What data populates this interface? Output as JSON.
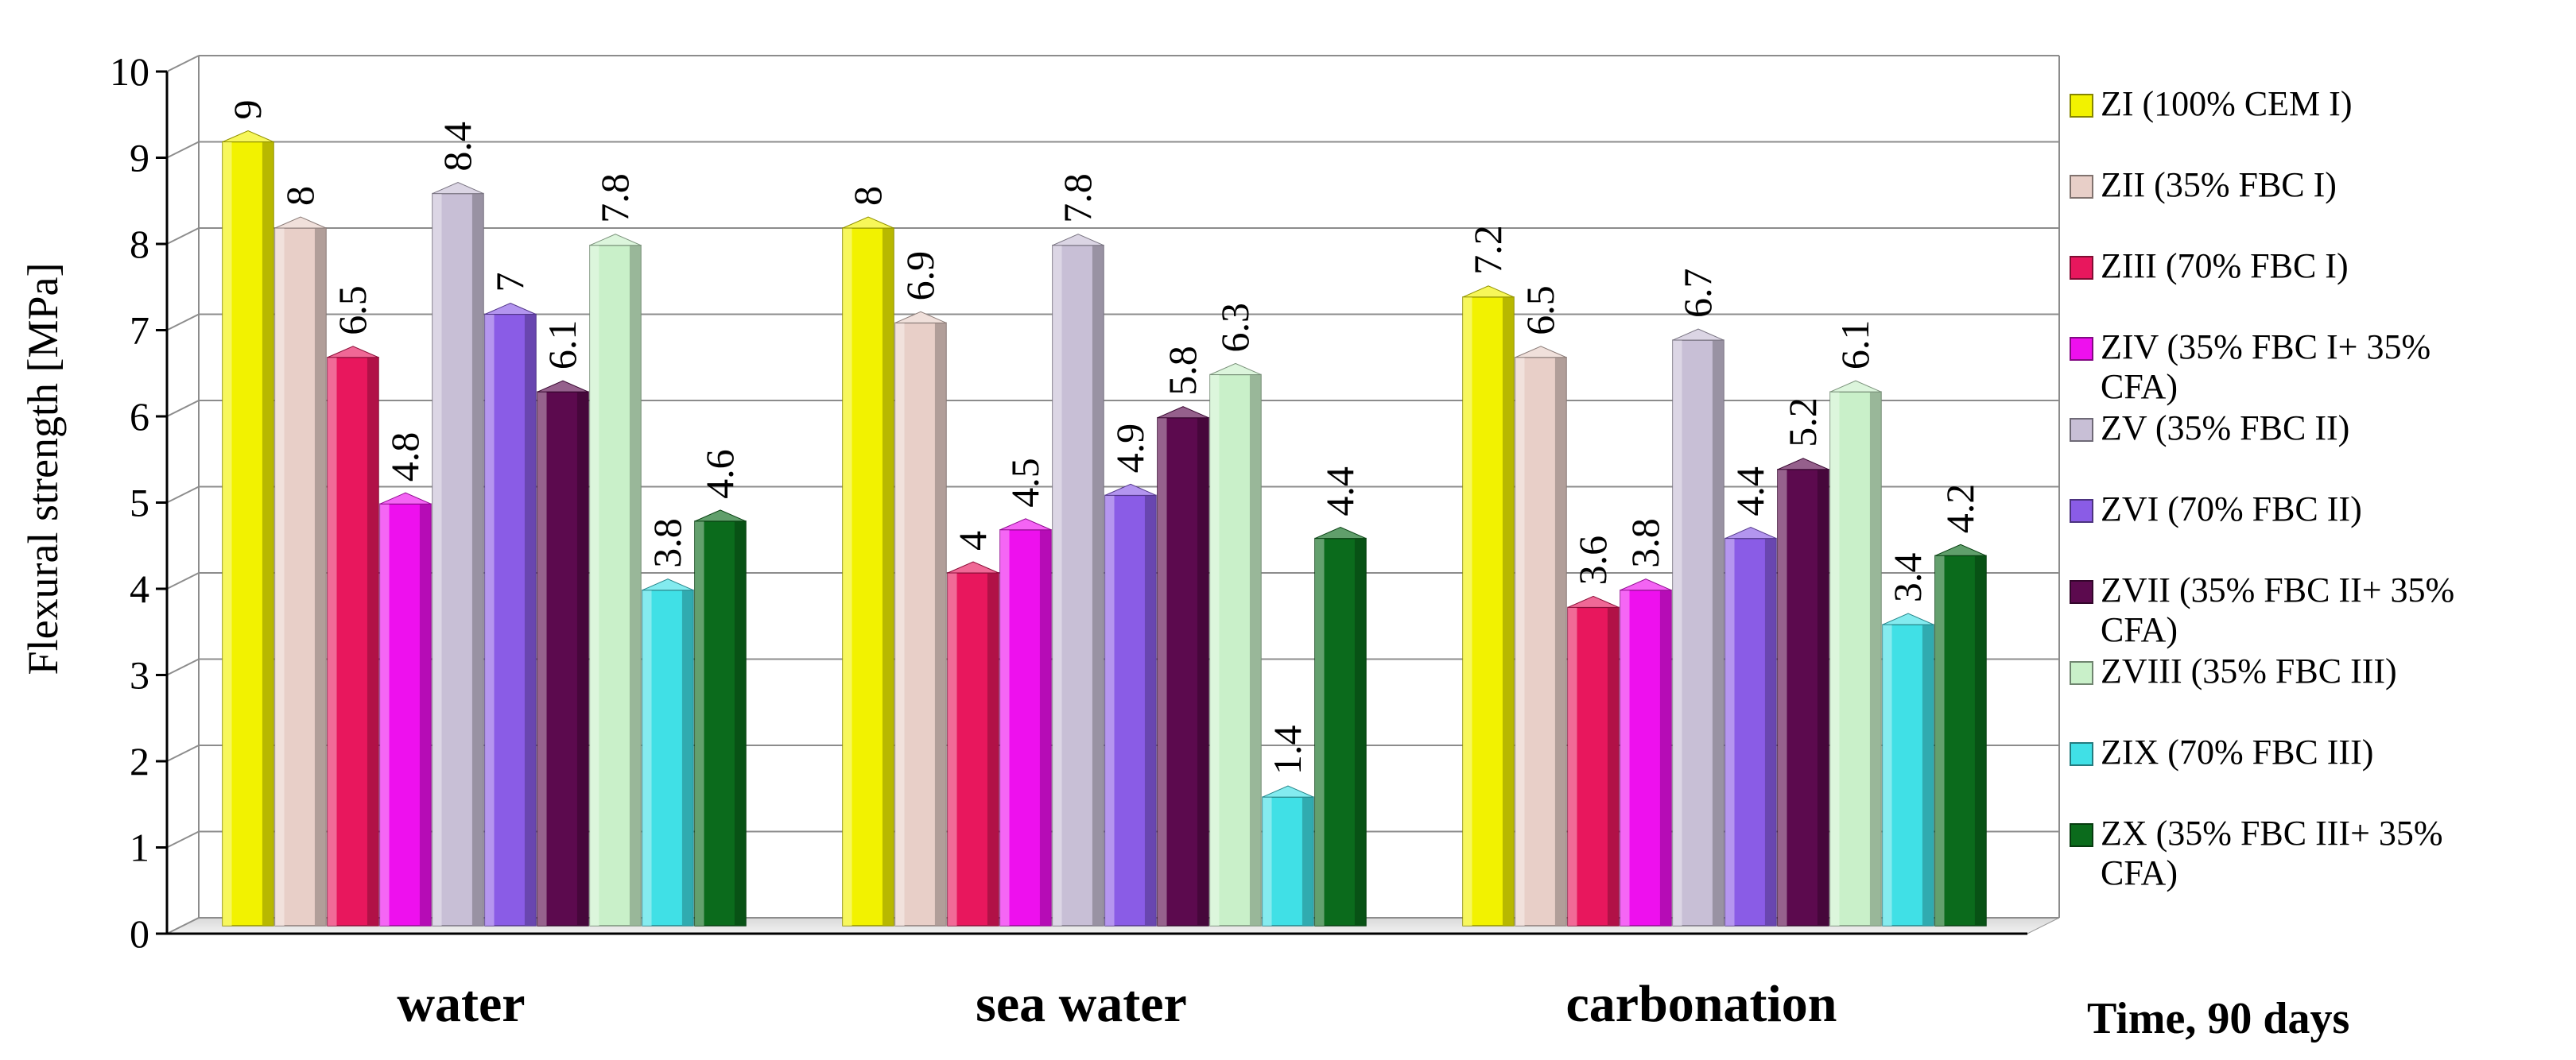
{
  "chart_data": {
    "type": "bar",
    "categories": [
      "water",
      "sea water",
      "carbonation"
    ],
    "series": [
      {
        "name": "ZI (100% CEM I)",
        "values": [
          9,
          8,
          7.2
        ],
        "color": "#f2f200",
        "label_lines": [
          "ZI (100% CEM I)"
        ]
      },
      {
        "name": "ZII (35% FBC I)",
        "values": [
          8,
          6.9,
          6.5
        ],
        "color": "#e8cfc8",
        "label_lines": [
          "ZII (35% FBC I)"
        ]
      },
      {
        "name": "ZIII (70%  FBC I)",
        "values": [
          6.5,
          4,
          3.6
        ],
        "color": "#e8175d",
        "label_lines": [
          "ZIII (70%  FBC I)"
        ]
      },
      {
        "name": "ZIV (35%  FBC I+ 35% CFA)",
        "values": [
          4.8,
          4.5,
          3.8
        ],
        "color": "#ee10ee",
        "label_lines": [
          "ZIV (35%  FBC I+ 35%",
          "CFA)"
        ]
      },
      {
        "name": "ZV (35% FBC II)",
        "values": [
          8.4,
          7.8,
          6.7
        ],
        "color": "#c8bfd6",
        "label_lines": [
          "ZV (35% FBC II)"
        ]
      },
      {
        "name": "ZVI (70% FBC II)",
        "values": [
          7,
          4.9,
          4.4
        ],
        "color": "#8a5ce6",
        "label_lines": [
          "ZVI (70% FBC II)"
        ]
      },
      {
        "name": "ZVII (35%  FBC II+ 35% CFA)",
        "values": [
          6.1,
          5.8,
          5.2
        ],
        "color": "#5c0a4e",
        "label_lines": [
          "ZVII (35%  FBC II+ 35%",
          "CFA)"
        ]
      },
      {
        "name": "ZVIII (35% FBC III)",
        "values": [
          7.8,
          6.3,
          6.1
        ],
        "color": "#c9f0c9",
        "label_lines": [
          "ZVIII (35% FBC III)"
        ]
      },
      {
        "name": "ZIX (70% FBC III)",
        "values": [
          3.8,
          1.4,
          3.4
        ],
        "color": "#40e0e6",
        "label_lines": [
          "ZIX (70% FBC III)"
        ]
      },
      {
        "name": "ZX (35%  FBC III+ 35% CFA)",
        "values": [
          4.6,
          4.4,
          4.2
        ],
        "color": "#0b6b1c",
        "label_lines": [
          "ZX (35%  FBC III+ 35%",
          "CFA)"
        ]
      }
    ],
    "data_labels": [
      [
        "9",
        "8",
        "6.5",
        "4.8",
        "8.4",
        "7",
        "6.1",
        "7.8",
        "3.8",
        "4.6"
      ],
      [
        "8",
        "6.9",
        "4",
        "4.5",
        "7.8",
        "4.9",
        "5.8",
        "6.3",
        "1.4",
        "4.4"
      ],
      [
        "7.2",
        "6.5",
        "3.6",
        "3.8",
        "6.7",
        "4.4",
        "5.2",
        "6.1",
        "3.4",
        "4.2"
      ]
    ],
    "ylabel": "Flexural strength [MPa]",
    "xlabel": "Time, 90 days",
    "ylim": [
      0,
      10
    ],
    "yticks": [
      "0",
      "1",
      "2",
      "3",
      "4",
      "5",
      "6",
      "7",
      "8",
      "9",
      "10"
    ],
    "grid": true,
    "legend_position": "right"
  }
}
